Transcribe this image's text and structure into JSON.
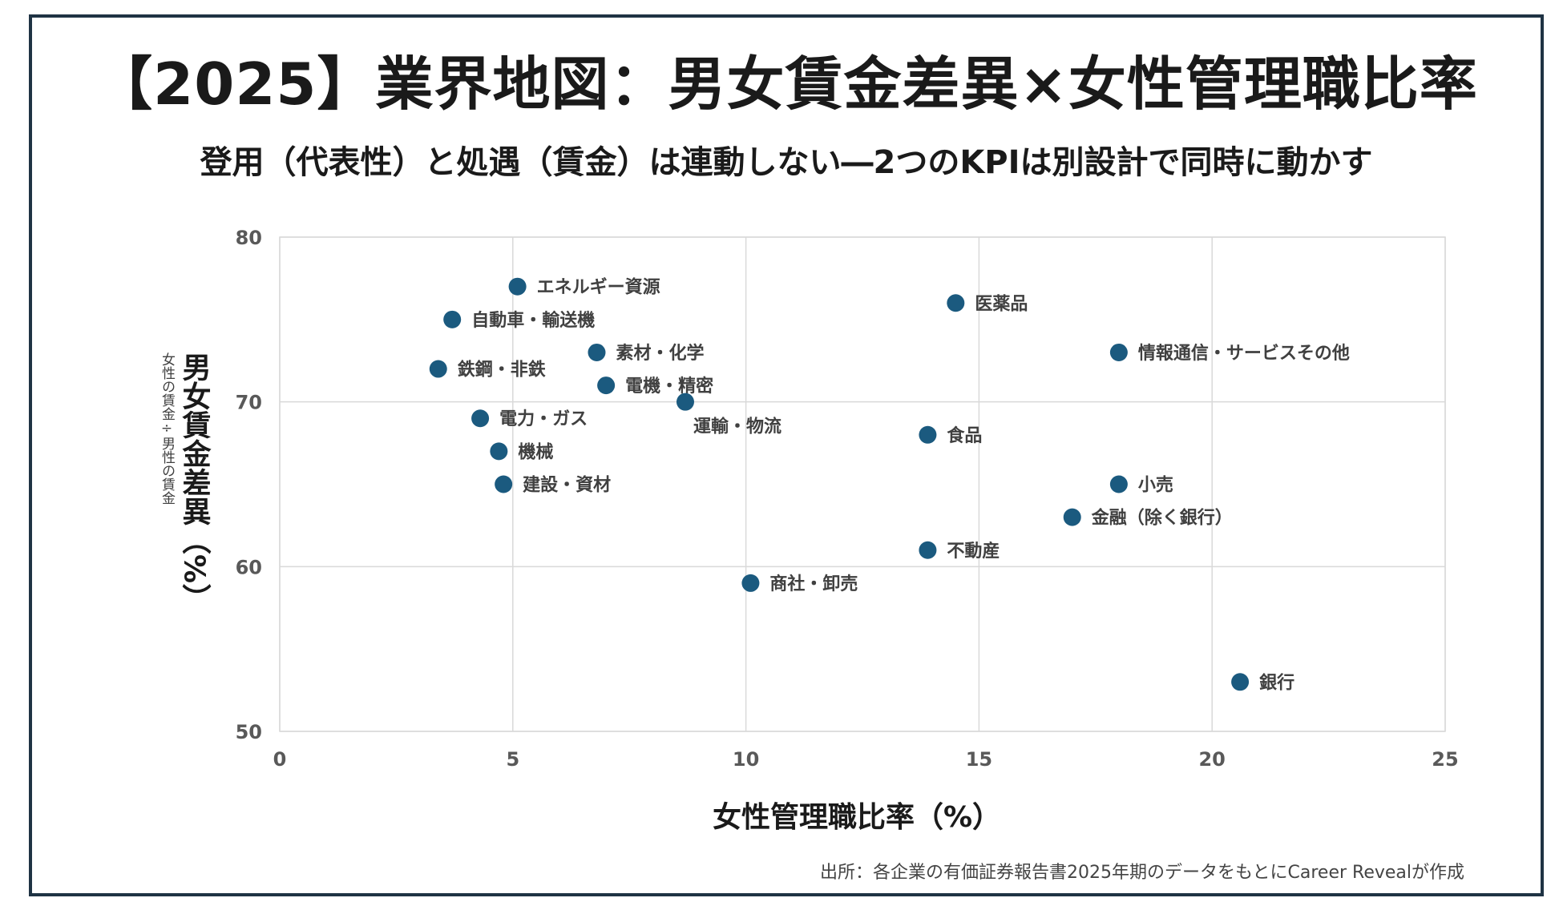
{
  "page": {
    "title": "【2025】業界地図：男女賃金差異×女性管理職比率",
    "subtitle": "登用（代表性）と処遇（賃金）は連動しない―2つのKPIは別設計で同時に動かす",
    "source": "出所：各企業の有価証券報告書2025年期のデータをもとにCareer Revealが作成"
  },
  "colors": {
    "marker": "#1b5a7f",
    "grid": "#d9d9d9",
    "axis_text": "#595959",
    "label_text": "#404040",
    "frame": "#1f3344"
  },
  "chart_data": {
    "type": "scatter",
    "title": "【2025】業界地図：男女賃金差異×女性管理職比率",
    "xlabel": "女性管理職比率（%）",
    "ylabel": "男女賃金差異（%）",
    "ylabel_note": "女性の賃金÷男性の賃金",
    "xlim": [
      0,
      25
    ],
    "ylim": [
      50,
      80
    ],
    "xticks": [
      0,
      5,
      10,
      15,
      20,
      25
    ],
    "yticks": [
      50,
      60,
      70,
      80
    ],
    "grid": true,
    "points": [
      {
        "label": "エネルギー資源",
        "x": 5.1,
        "y": 77
      },
      {
        "label": "自動車・輸送機",
        "x": 3.7,
        "y": 75
      },
      {
        "label": "素材・化学",
        "x": 6.8,
        "y": 73
      },
      {
        "label": "鉄鋼・非鉄",
        "x": 3.4,
        "y": 72
      },
      {
        "label": "電機・精密",
        "x": 7.0,
        "y": 71
      },
      {
        "label": "運輸・物流",
        "x": 8.7,
        "y": 70,
        "label_pos": "below"
      },
      {
        "label": "電力・ガス",
        "x": 4.3,
        "y": 69
      },
      {
        "label": "機械",
        "x": 4.7,
        "y": 67
      },
      {
        "label": "建設・資材",
        "x": 4.8,
        "y": 65
      },
      {
        "label": "商社・卸売",
        "x": 10.1,
        "y": 59
      },
      {
        "label": "医薬品",
        "x": 14.5,
        "y": 76
      },
      {
        "label": "食品",
        "x": 13.9,
        "y": 68
      },
      {
        "label": "不動産",
        "x": 13.9,
        "y": 61
      },
      {
        "label": "情報通信・サービスその他",
        "x": 18.0,
        "y": 73
      },
      {
        "label": "小売",
        "x": 18.0,
        "y": 65
      },
      {
        "label": "金融（除く銀行）",
        "x": 17.0,
        "y": 63
      },
      {
        "label": "銀行",
        "x": 20.6,
        "y": 53
      }
    ]
  }
}
